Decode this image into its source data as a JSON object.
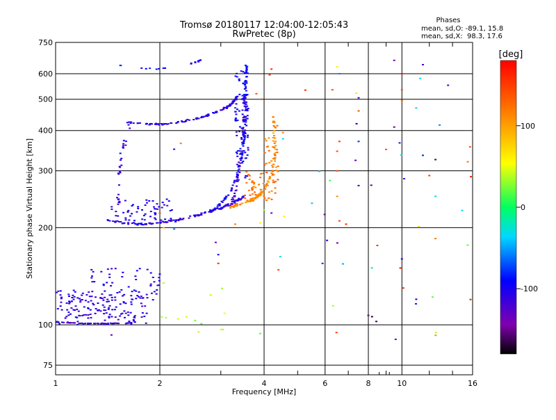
{
  "chart_data": {
    "type": "scatter",
    "title": "Tromsø 20180117 12:04:00-12:05:43",
    "subtitle": "RwPretec (8p)",
    "xlabel": "Frequency [MHz]",
    "ylabel": "Stationary phase Virtual Height [km]",
    "x_scale": "log",
    "y_scale": "log",
    "xlim": [
      1,
      16
    ],
    "ylim": [
      70,
      750
    ],
    "x_ticks": [
      1,
      2,
      4,
      6,
      8,
      10,
      16
    ],
    "x_ticks_labels": [
      "1",
      "2",
      "4",
      "6",
      "8",
      "10",
      "16"
    ],
    "x_minor_ticks": [
      3,
      5,
      7,
      9,
      12,
      14
    ],
    "y_ticks": [
      75,
      100,
      200,
      300,
      400,
      500,
      600,
      750
    ],
    "y_ticks_labels": [
      "75",
      "100",
      "200",
      "300",
      "400",
      "500",
      "600",
      "750"
    ],
    "grid": true,
    "phases_box": {
      "heading": "Phases",
      "line1": "mean, sd,O: -89.1, 15.8",
      "line2": "mean, sd,X:  98.3, 17.6"
    },
    "colorbar": {
      "label": "[deg]",
      "range": [
        -180,
        180
      ],
      "tick_values": [
        100,
        0,
        -100
      ],
      "tick_labels": [
        "100",
        "0",
        "-100"
      ]
    },
    "clusters": [
      {
        "kind": "curve",
        "phase": -110,
        "jit": 0.012,
        "n": 150,
        "pts": [
          [
            1.42,
            212
          ],
          [
            1.6,
            206
          ],
          [
            1.8,
            205
          ],
          [
            2.0,
            207
          ],
          [
            2.3,
            212
          ],
          [
            2.7,
            222
          ],
          [
            3.0,
            230
          ],
          [
            3.3,
            240
          ],
          [
            3.5,
            250
          ]
        ]
      },
      {
        "kind": "curve",
        "phase": -95,
        "jit": 0.012,
        "n": 90,
        "pts": [
          [
            2.8,
            225
          ],
          [
            3.0,
            238
          ],
          [
            3.2,
            258
          ],
          [
            3.35,
            290
          ],
          [
            3.45,
            330
          ],
          [
            3.5,
            380
          ],
          [
            3.55,
            450
          ],
          [
            3.55,
            560
          ],
          [
            3.55,
            650
          ]
        ]
      },
      {
        "kind": "curve",
        "phase": -105,
        "jit": 0.01,
        "n": 110,
        "pts": [
          [
            1.6,
            425
          ],
          [
            1.8,
            420
          ],
          [
            2.0,
            418
          ],
          [
            2.3,
            425
          ],
          [
            2.7,
            442
          ],
          [
            3.0,
            462
          ],
          [
            3.2,
            480
          ],
          [
            3.35,
            510
          ]
        ]
      },
      {
        "kind": "curve",
        "phase": -100,
        "jit": 0.01,
        "n": 18,
        "pts": [
          [
            1.5,
            640
          ],
          [
            1.7,
            625
          ],
          [
            2.0,
            622
          ],
          [
            2.4,
            640
          ],
          [
            2.65,
            660
          ]
        ]
      },
      {
        "kind": "curve",
        "phase": -110,
        "jit": 0.015,
        "n": 30,
        "pts": [
          [
            1.52,
            230
          ],
          [
            1.52,
            280
          ],
          [
            1.55,
            340
          ],
          [
            1.6,
            380
          ],
          [
            1.65,
            430
          ]
        ]
      },
      {
        "kind": "box",
        "phase": -105,
        "n": 55,
        "xr": [
          1.45,
          2.2
        ],
        "yr": [
          210,
          245
        ]
      },
      {
        "kind": "curve",
        "phase": -115,
        "jit": 0.015,
        "n": 60,
        "pts": [
          [
            3.25,
            240
          ],
          [
            3.35,
            280
          ],
          [
            3.42,
            330
          ],
          [
            3.48,
            400
          ],
          [
            3.5,
            470
          ],
          [
            3.52,
            520
          ]
        ]
      },
      {
        "kind": "box",
        "phase": -95,
        "n": 90,
        "xr": [
          3.3,
          3.6
        ],
        "yr": [
          280,
          640
        ]
      },
      {
        "kind": "curve",
        "phase": 110,
        "jit": 0.012,
        "n": 110,
        "pts": [
          [
            3.2,
            232
          ],
          [
            3.5,
            238
          ],
          [
            3.8,
            248
          ],
          [
            4.0,
            262
          ],
          [
            4.2,
            290
          ],
          [
            4.3,
            330
          ],
          [
            4.3,
            380
          ],
          [
            4.25,
            440
          ]
        ]
      },
      {
        "kind": "box",
        "phase": 125,
        "n": 55,
        "xr": [
          3.5,
          4.4
        ],
        "yr": [
          240,
          300
        ]
      },
      {
        "kind": "box",
        "phase": 120,
        "n": 25,
        "xr": [
          4.0,
          4.4
        ],
        "yr": [
          300,
          420
        ]
      },
      {
        "kind": "box",
        "phase": -110,
        "n": 160,
        "xr": [
          1.0,
          1.85
        ],
        "yr": [
          100,
          128
        ]
      },
      {
        "kind": "box",
        "phase": -105,
        "n": 55,
        "xr": [
          1.25,
          2.0
        ],
        "yr": [
          118,
          150
        ]
      },
      {
        "kind": "curve",
        "phase": -115,
        "jit": 0.003,
        "n": 55,
        "pts": [
          [
            1.0,
            102
          ],
          [
            1.2,
            101
          ],
          [
            1.4,
            101
          ],
          [
            1.6,
            101
          ],
          [
            1.7,
            102
          ]
        ]
      },
      {
        "kind": "box",
        "phase": 40,
        "n": 14,
        "xr": [
          1.9,
          3.2
        ],
        "yr": [
          95,
          140
        ]
      },
      {
        "kind": "box",
        "phase": 10,
        "n": 35,
        "xr": [
          4.4,
          16
        ],
        "yr": [
          90,
          650
        ]
      }
    ],
    "scatter_points": [
      [
        3.8,
        520,
        140
      ],
      [
        3.95,
        500,
        150
      ],
      [
        4.2,
        620,
        160
      ],
      [
        4.15,
        595,
        150
      ],
      [
        6.3,
        535,
        140
      ],
      [
        6.5,
        630,
        60
      ],
      [
        6.6,
        600,
        -60
      ],
      [
        6.5,
        345,
        140
      ],
      [
        6.6,
        370,
        150
      ],
      [
        7.5,
        505,
        -110
      ],
      [
        7.4,
        420,
        -90
      ],
      [
        7.5,
        460,
        140
      ],
      [
        7.5,
        370,
        -80
      ],
      [
        7.5,
        270,
        -110
      ],
      [
        9.5,
        660,
        -140
      ],
      [
        9.5,
        410,
        -150
      ],
      [
        10.0,
        535,
        140
      ],
      [
        10.0,
        495,
        120
      ],
      [
        10.0,
        600,
        170
      ],
      [
        11.5,
        640,
        -120
      ],
      [
        11.3,
        580,
        -20
      ],
      [
        11.0,
        470,
        -30
      ],
      [
        11.5,
        335,
        -80
      ],
      [
        12.5,
        325,
        -160
      ],
      [
        12.0,
        290,
        150
      ],
      [
        12.5,
        250,
        -30
      ],
      [
        12.5,
        185,
        120
      ],
      [
        15.5,
        320,
        120
      ],
      [
        5.5,
        238,
        -40
      ],
      [
        5.9,
        155,
        -80
      ],
      [
        6.6,
        210,
        150
      ],
      [
        6.9,
        205,
        160
      ],
      [
        2.9,
        180,
        -140
      ],
      [
        2.95,
        155,
        160
      ],
      [
        2.95,
        165,
        -100
      ],
      [
        9.9,
        150,
        170
      ],
      [
        10.0,
        160,
        -110
      ],
      [
        10.1,
        130,
        150
      ],
      [
        11.0,
        120,
        -90
      ],
      [
        8.0,
        107,
        -150
      ],
      [
        8.2,
        106,
        -170
      ],
      [
        4.4,
        148,
        140
      ],
      [
        3.9,
        94,
        20
      ],
      [
        2.0,
        222,
        140
      ],
      [
        2.05,
        200,
        90
      ],
      [
        2.2,
        198,
        -60
      ],
      [
        3.3,
        205,
        120
      ],
      [
        4.0,
        227,
        30
      ],
      [
        4.2,
        222,
        -140
      ],
      [
        3.9,
        207,
        60
      ],
      [
        2.3,
        365,
        120
      ],
      [
        2.2,
        350,
        -110
      ],
      [
        6.2,
        280,
        10
      ],
      [
        6.5,
        300,
        150
      ],
      [
        6.5,
        250,
        110
      ],
      [
        1.45,
        93,
        -150
      ]
    ]
  }
}
